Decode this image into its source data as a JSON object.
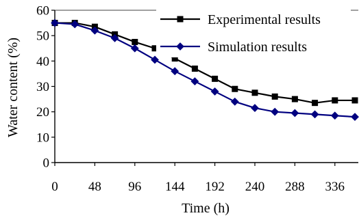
{
  "chart_data": {
    "type": "line",
    "xlabel": "Time (h)",
    "ylabel": "Water content (%)",
    "xlim": [
      0,
      360
    ],
    "ylim": [
      0,
      60
    ],
    "x_ticks": [
      0,
      48,
      96,
      144,
      192,
      240,
      288,
      336
    ],
    "y_ticks": [
      0,
      10,
      20,
      30,
      40,
      50,
      60
    ],
    "x": [
      0,
      24,
      48,
      72,
      96,
      120,
      144,
      168,
      192,
      216,
      240,
      264,
      288,
      312,
      336,
      360
    ],
    "series": [
      {
        "name": "Experimental results",
        "color": "#000000",
        "marker": "square",
        "values": [
          55,
          55,
          53.5,
          50.5,
          47.5,
          45,
          41,
          37,
          33,
          29,
          27.5,
          26,
          25,
          23.5,
          24.5,
          24.5
        ]
      },
      {
        "name": "Simulation results",
        "color": "#000080",
        "marker": "diamond",
        "values": [
          55,
          54.5,
          52,
          49,
          45,
          40.5,
          36,
          32,
          28,
          24,
          21.5,
          20,
          19.5,
          19,
          18.5,
          18
        ]
      }
    ],
    "grid": false,
    "legend": "top-right"
  }
}
